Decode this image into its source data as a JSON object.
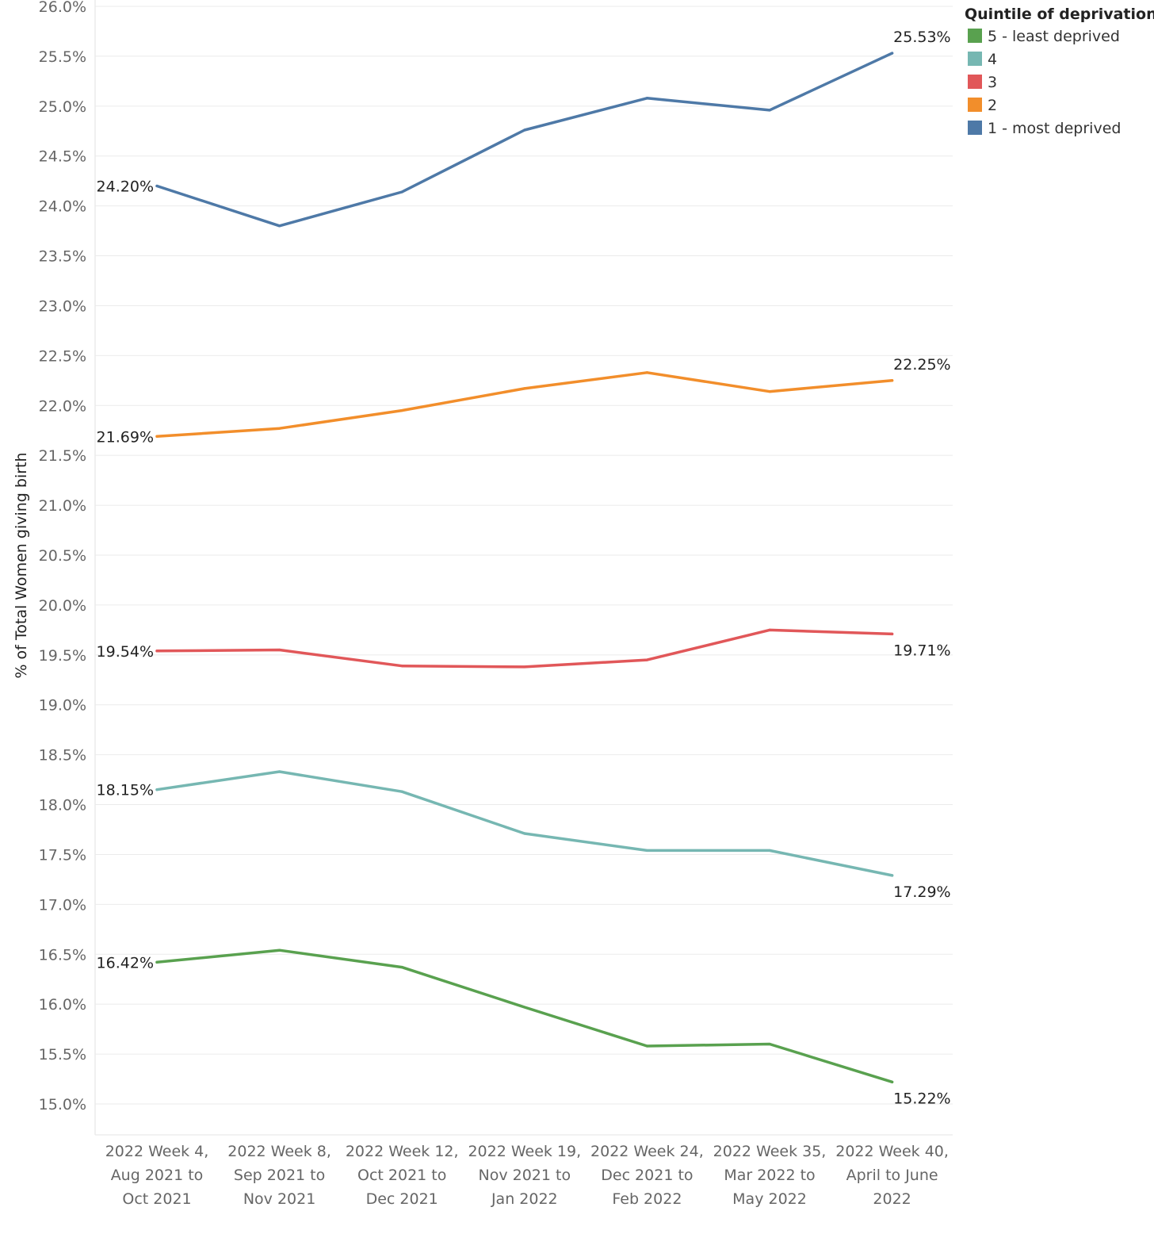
{
  "chart_data": {
    "type": "line",
    "ylabel": "% of Total Women giving birth",
    "xlabel": "",
    "ylim": [
      14.7,
      26.0
    ],
    "y_ticks": [
      "26.0%",
      "25.5%",
      "25.0%",
      "24.5%",
      "24.0%",
      "23.5%",
      "23.0%",
      "22.5%",
      "22.0%",
      "21.5%",
      "21.0%",
      "20.5%",
      "20.0%",
      "19.5%",
      "19.0%",
      "18.5%",
      "18.0%",
      "17.5%",
      "17.0%",
      "16.5%",
      "16.0%",
      "15.5%",
      "15.0%"
    ],
    "y_tick_values": [
      26.0,
      25.5,
      25.0,
      24.5,
      24.0,
      23.5,
      23.0,
      22.5,
      22.0,
      21.5,
      21.0,
      20.5,
      20.0,
      19.5,
      19.0,
      18.5,
      18.0,
      17.5,
      17.0,
      16.5,
      16.0,
      15.5,
      15.0
    ],
    "categories": [
      [
        "2022 Week 4,",
        "Aug 2021 to",
        "Oct 2021"
      ],
      [
        "2022 Week 8,",
        "Sep 2021 to",
        "Nov 2021"
      ],
      [
        "2022 Week 12,",
        "Oct 2021 to",
        "Dec 2021"
      ],
      [
        "2022 Week 19,",
        "Nov 2021 to",
        "Jan 2022"
      ],
      [
        "2022 Week 24,",
        "Dec 2021 to",
        "Feb 2022"
      ],
      [
        "2022 Week 35,",
        "Mar 2022 to",
        "May 2022"
      ],
      [
        "2022 Week 40,",
        "April to June",
        "2022"
      ]
    ],
    "legend": {
      "title": "Quintile of deprivation",
      "placement": "top-right"
    },
    "grid": true,
    "series": [
      {
        "name": "5 - least deprived",
        "color": "#59a14f",
        "values": [
          16.42,
          16.54,
          16.37,
          15.97,
          15.58,
          15.6,
          15.22
        ],
        "start_label": "16.42%",
        "end_label": "15.22%",
        "end_label_position": "below"
      },
      {
        "name": "4",
        "color": "#76b7b2",
        "values": [
          18.15,
          18.33,
          18.13,
          17.71,
          17.54,
          17.54,
          17.29
        ],
        "start_label": "18.15%",
        "end_label": "17.29%",
        "end_label_position": "below"
      },
      {
        "name": "3",
        "color": "#e15759",
        "values": [
          19.54,
          19.55,
          19.39,
          19.38,
          19.45,
          19.75,
          19.71
        ],
        "start_label": "19.54%",
        "end_label": "19.71%",
        "end_label_position": "below"
      },
      {
        "name": "2",
        "color": "#f28e2b",
        "values": [
          21.69,
          21.77,
          21.95,
          22.17,
          22.33,
          22.14,
          22.25
        ],
        "start_label": "21.69%",
        "end_label": "22.25%",
        "end_label_position": "above"
      },
      {
        "name": "1 - most deprived",
        "color": "#4e79a7",
        "values": [
          24.2,
          23.8,
          24.14,
          24.76,
          25.08,
          24.96,
          25.53
        ],
        "start_label": "24.20%",
        "end_label": "25.53%",
        "end_label_position": "above"
      }
    ]
  }
}
